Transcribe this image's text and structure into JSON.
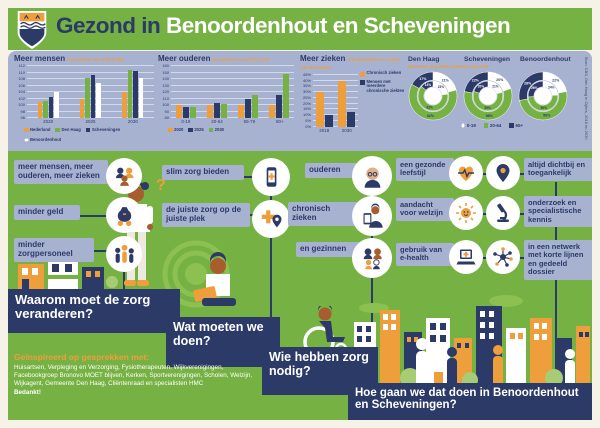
{
  "header": {
    "title_prefix": "Gezond in",
    "title_main": "Benoordenhout en Scheveningen"
  },
  "colors": {
    "green": "#76b143",
    "light_green": "#a8cc74",
    "navy": "#2c3a68",
    "orange": "#ee9f3c",
    "lavender": "#a7b2d1",
    "cream": "#f6f2e7",
    "white": "#ffffff"
  },
  "stats": {
    "source": "Bron: CBS, Den Haag in Cijfers, 2018 en 2030"
  },
  "chart_data": [
    {
      "type": "bar",
      "title": "Meer mensen",
      "subtitle": "ten opzichte van 2018 (=100)",
      "categories": [
        "2020",
        "2025",
        "2030"
      ],
      "series": [
        {
          "name": "Nederland",
          "color": "orange",
          "values": [
            101,
            102,
            104
          ]
        },
        {
          "name": "Den Haag",
          "color": "green",
          "values": [
            101.5,
            108.5,
            111
          ]
        },
        {
          "name": "Scheveningen",
          "color": "navy",
          "values": [
            102.5,
            109.5,
            110.5
          ]
        },
        {
          "name": "Benoordenhout",
          "color": "white",
          "values": [
            104,
            107,
            108.5
          ]
        }
      ],
      "ylim": [
        96,
        112
      ],
      "ystep": 2,
      "ytick_suffix": "",
      "grid": true,
      "legend_pos": "bottom"
    },
    {
      "type": "bar",
      "title": "Meer ouderen",
      "subtitle": "ten opzichte van 2020 (=100)",
      "categories": [
        "0-19",
        "20-64",
        "65-79",
        "80+"
      ],
      "series": [
        {
          "name": "2020",
          "color": "orange",
          "values": [
            100,
            100,
            100,
            100
          ]
        },
        {
          "name": "2025",
          "color": "navy",
          "values": [
            97,
            103,
            110,
            116
          ]
        },
        {
          "name": "2030",
          "color": "green",
          "values": [
            98,
            102,
            116,
            149
          ]
        }
      ],
      "ylim": [
        80,
        160
      ],
      "ystep": 10,
      "ytick_suffix": "",
      "grid": true,
      "legend_pos": "bottom"
    },
    {
      "type": "bar",
      "title": "Meer zieken",
      "subtitle": "% Nederlanders in contact met de huisarts",
      "categories": [
        "2018",
        "2030"
      ],
      "series": [
        {
          "name": "Chronisch zieken",
          "color": "orange",
          "values": [
            30,
            40
          ]
        },
        {
          "name": "Mensen met meerdere chronische ziekten",
          "color": "navy",
          "values": [
            10,
            13
          ]
        }
      ],
      "ylim": [
        0,
        45
      ],
      "ystep": 5,
      "ytick_suffix": "%",
      "grid": true,
      "legend_pos": "right"
    },
    {
      "type": "donut-group",
      "subtitle": "Binnenste ring 2020, buitenste ring 2030",
      "legend": [
        "0-19",
        "20-64",
        "65+"
      ],
      "legend_colors": [
        "white",
        "green",
        "navy"
      ],
      "segment_order": [
        "0-19",
        "20-64",
        "65+"
      ],
      "donuts": [
        {
          "title": "Den Haag",
          "inner_2020": [
            23,
            63,
            14
          ],
          "outer_2030": [
            21,
            62,
            17
          ]
        },
        {
          "title": "Scheveningen",
          "inner_2020": [
            21,
            59,
            20
          ],
          "outer_2030": [
            20,
            58,
            22
          ]
        },
        {
          "title": "Benoordenhout",
          "inner_2020": [
            24,
            50,
            26
          ],
          "outer_2030": [
            22,
            50,
            28
          ]
        }
      ]
    }
  ],
  "flow": {
    "problems": [
      {
        "label": "meer mensen, meer ouderen, meer zieken",
        "icon": "people-icon"
      },
      {
        "label": "minder geld",
        "icon": "money-bag-icon"
      },
      {
        "label": "minder zorgpersoneel",
        "icon": "care-staff-icon"
      }
    ],
    "q1": "Waarom moet de zorg veranderen?",
    "solutions": [
      {
        "label": "slim zorg bieden",
        "icon": "smartphone-icon"
      },
      {
        "label": "de juiste zorg op de juiste plek",
        "icon": "pin-cross-icon"
      }
    ],
    "q2": "Wat moeten we doen?",
    "targets": [
      {
        "label": "ouderen",
        "icon": "elderly-icon"
      },
      {
        "label": "chronisch zieken",
        "icon": "tablet-person-icon"
      },
      {
        "label": "en gezinnen",
        "icon": "family-icon"
      }
    ],
    "q3": "Wie hebben zorg nodig?",
    "approaches_left": [
      {
        "label": "een gezonde leefstijl",
        "icon": "heart-pulse-icon"
      },
      {
        "label": "aandacht voor welzijn",
        "icon": "sun-icon"
      },
      {
        "label": "gebruik van e-health",
        "icon": "laptop-cross-icon"
      }
    ],
    "approach_icons_extra": [
      "location-pin-icon",
      "microscope-icon",
      "network-icon"
    ],
    "approaches_right": [
      "altijd dichtbij en toegankelijk",
      "onderzoek en specialistische kennis",
      "in een netwerk met korte lijnen en gedeeld dossier"
    ],
    "q4": "Hoe gaan we dat doen in Benoordenhout en Scheveningen?"
  },
  "footer": {
    "credits_title": "Geïnspireerd op gesprekken met:",
    "credits_text": "Huisartsen, Verpleging en Verzorging, Fysiotherapeuten, Wijkverenigingen, Facebookgroep Bronovo MOET blijven, Kerken, Sportverenigingen, Scholen, Welzijn, Wijkagent, Gemeente Den Haag, Cliëntenraad en specialisten HMC",
    "thanks": "Bedankt!"
  },
  "decor": {
    "question_mark": "?"
  }
}
